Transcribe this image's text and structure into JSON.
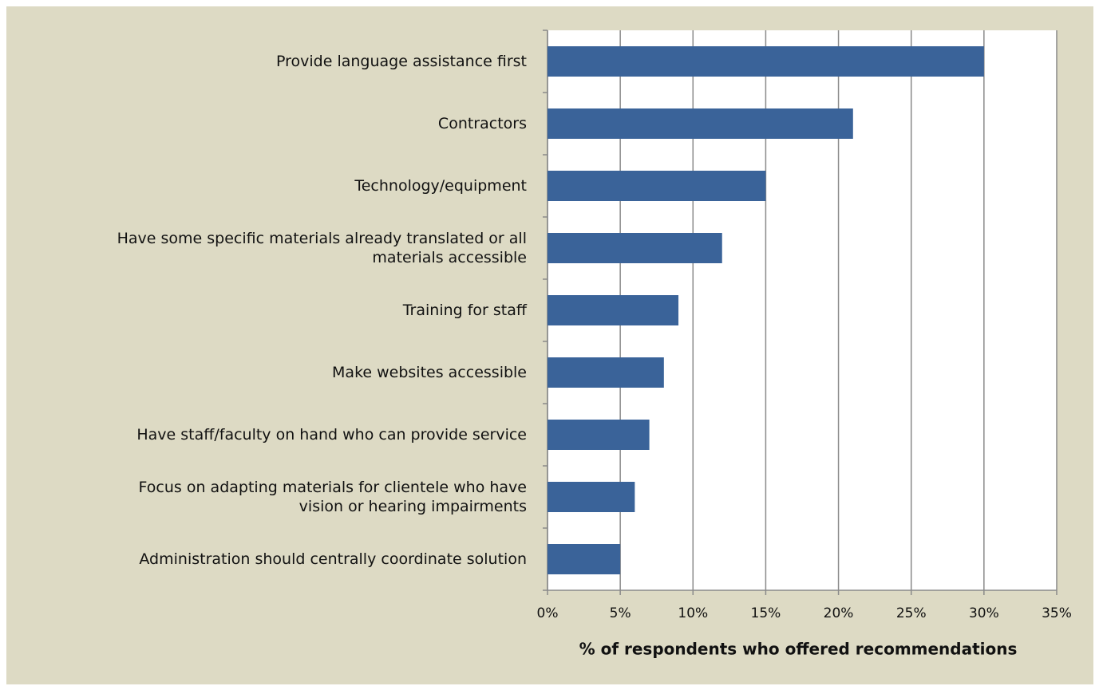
{
  "chart_data": {
    "type": "bar",
    "orientation": "horizontal",
    "categories": [
      "Provide language assistance first",
      "Contractors",
      "Technology/equipment",
      "Have some specific materials already translated or all\nmaterials accessible",
      "Training for staff",
      "Make websites accessible",
      "Have staff/faculty on hand who can provide service",
      "Focus on adapting materials for clientele who have\nvision or hearing impairments",
      "Administration should centrally coordinate solution"
    ],
    "values": [
      30,
      21,
      15,
      12,
      9,
      8,
      7,
      6,
      5
    ],
    "color": "#3a6399",
    "xlim": [
      0,
      35
    ],
    "xticks": [
      {
        "value": 0,
        "label": "0%"
      },
      {
        "value": 5,
        "label": "5%"
      },
      {
        "value": 10,
        "label": "10%"
      },
      {
        "value": 15,
        "label": "15%"
      },
      {
        "value": 20,
        "label": "20%"
      },
      {
        "value": 25,
        "label": "25%"
      },
      {
        "value": 30,
        "label": "30%"
      },
      {
        "value": 35,
        "label": "35%"
      }
    ],
    "xlabel": "% of respondents who offered recommendations",
    "grid": true
  }
}
